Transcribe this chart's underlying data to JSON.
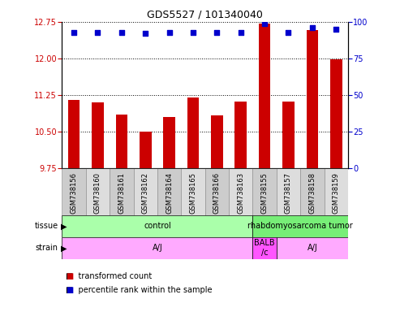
{
  "title": "GDS5527 / 101340040",
  "samples": [
    "GSM738156",
    "GSM738160",
    "GSM738161",
    "GSM738162",
    "GSM738164",
    "GSM738165",
    "GSM738166",
    "GSM738163",
    "GSM738155",
    "GSM738157",
    "GSM738158",
    "GSM738159"
  ],
  "transformed_counts": [
    11.15,
    11.1,
    10.85,
    10.5,
    10.8,
    11.2,
    10.83,
    11.12,
    12.72,
    11.12,
    12.58,
    11.98
  ],
  "percentile_ranks": [
    93,
    93,
    93,
    92,
    93,
    93,
    93,
    93,
    99,
    93,
    96,
    95
  ],
  "ylim_left": [
    9.75,
    12.75
  ],
  "ylim_right": [
    0,
    100
  ],
  "yticks_left": [
    9.75,
    10.5,
    11.25,
    12.0,
    12.75
  ],
  "yticks_right": [
    0,
    25,
    50,
    75,
    100
  ],
  "bar_color": "#cc0000",
  "dot_color": "#0000cc",
  "tissue_labels": [
    {
      "label": "control",
      "start": 0,
      "end": 8,
      "color": "#aaffaa"
    },
    {
      "label": "rhabdomyosarcoma tumor",
      "start": 8,
      "end": 12,
      "color": "#77ee77"
    }
  ],
  "strain_labels": [
    {
      "label": "A/J",
      "start": 0,
      "end": 8,
      "color": "#ffaaff"
    },
    {
      "label": "BALB\n/c",
      "start": 8,
      "end": 9,
      "color": "#ff55ff"
    },
    {
      "label": "A/J",
      "start": 9,
      "end": 12,
      "color": "#ffaaff"
    }
  ],
  "legend_red": "transformed count",
  "legend_blue": "percentile rank within the sample",
  "background_color": "#ffffff",
  "label_color_left": "#cc0000",
  "label_color_right": "#0000cc",
  "col_colors": [
    "#cccccc",
    "#dddddd"
  ]
}
